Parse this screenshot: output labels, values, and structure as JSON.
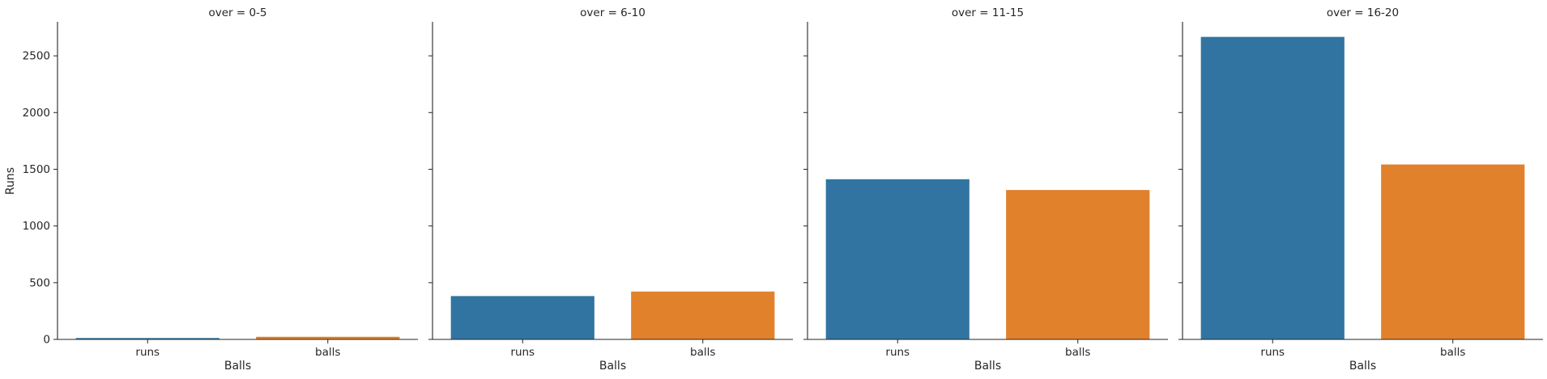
{
  "chart_data": {
    "type": "bar",
    "ylabel": "Runs",
    "xlabel": "Balls",
    "ylim": [
      0,
      2800
    ],
    "yticks": [
      0,
      500,
      1000,
      1500,
      2000,
      2500
    ],
    "categories": [
      "runs",
      "balls"
    ],
    "colors": [
      "#3274a1",
      "#e1812c"
    ],
    "grid": false,
    "panels": [
      {
        "title": "over = 0-5",
        "values": [
          15,
          26
        ]
      },
      {
        "title": "over = 6-10",
        "values": [
          385,
          425
        ]
      },
      {
        "title": "over = 11-15",
        "values": [
          1415,
          1320
        ]
      },
      {
        "title": "over = 16-20",
        "values": [
          2670,
          1545
        ]
      }
    ]
  }
}
